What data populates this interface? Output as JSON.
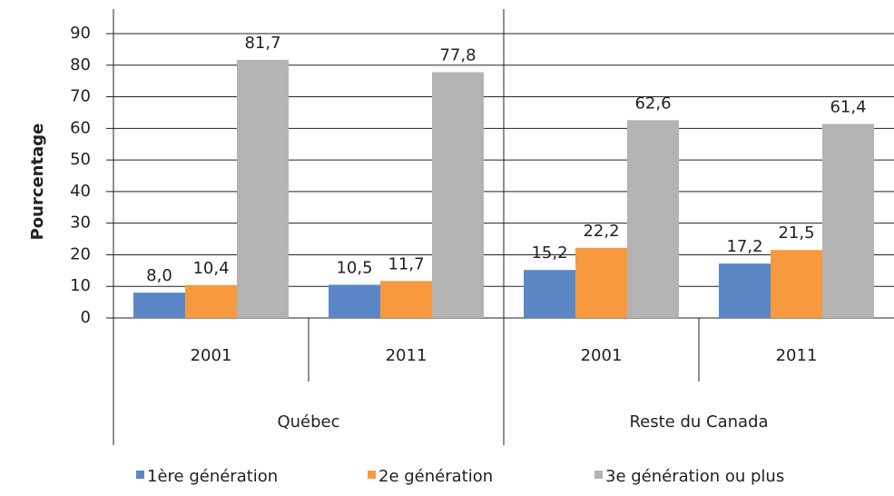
{
  "chart_data": {
    "type": "bar",
    "y_label": "Pourcentage",
    "categories": [
      "2001",
      "2011",
      "2001",
      "2011"
    ],
    "groups": [
      "Québec",
      "Reste du Canada"
    ],
    "series": [
      {
        "name": "1ère génération",
        "color": "#5b87c7",
        "values": [
          8.0,
          10.5,
          15.2,
          17.2
        ],
        "value_labels": [
          "8,0",
          "10,5",
          "15,2",
          "17,2"
        ]
      },
      {
        "name": "2e génération",
        "color": "#f79a3f",
        "values": [
          10.4,
          11.7,
          22.2,
          21.5
        ],
        "value_labels": [
          "10,4",
          "11,7",
          "22,2",
          "21,5"
        ]
      },
      {
        "name": "3e génération ou plus",
        "color": "#b3b3b3",
        "values": [
          81.7,
          77.8,
          62.6,
          61.4
        ],
        "value_labels": [
          "81,7",
          "77,8",
          "62,6",
          "61,4"
        ]
      }
    ],
    "ylim": [
      0,
      90
    ],
    "yticks": [
      0,
      10,
      20,
      30,
      40,
      50,
      60,
      70,
      80,
      90
    ],
    "grid": true,
    "legend": "bottom"
  }
}
